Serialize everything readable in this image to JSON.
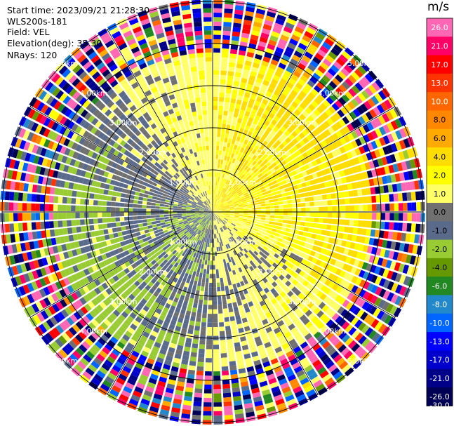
{
  "header": {
    "start_time": "Start time: 2023/09/21 21:28:30",
    "instrument": "WLS200s-181",
    "field": "Field: VEL",
    "elevation": "Elevation(deg): 35.30",
    "nrays": "NRays: 120"
  },
  "chart_data": {
    "type": "heatmap",
    "projection": "polar (PPI scan)",
    "field": "VEL",
    "n_rays": 120,
    "elevation_deg": 35.3,
    "range_rings_km": [
      1.0,
      2.0,
      3.0,
      4.0,
      5.0
    ],
    "ring_label_text": [
      "1.00km",
      "2.00km",
      "3.00km",
      "4.00km",
      "5.00km"
    ],
    "spokes_deg": [
      0,
      30,
      60,
      90,
      120,
      150,
      180,
      210,
      240,
      270,
      300,
      330
    ],
    "colorbar": {
      "unit": "m/s",
      "range": [
        -30,
        30
      ],
      "boundaries": [
        "26.0",
        "21.0",
        "17.0",
        "13.0",
        "10.0",
        "8.0",
        "6.0",
        "4.0",
        "2.0",
        "1.0",
        "0.0",
        "-1.0",
        "-2.0",
        "-4.0",
        "-6.0",
        "-8.0",
        "-10.0",
        "-13.0",
        "-17.0",
        "-21.0",
        "-26.0",
        "-30.0"
      ],
      "colors": [
        "#ff66b3",
        "#ff0066",
        "#ff0000",
        "#ff3300",
        "#ff6600",
        "#ff8800",
        "#ffaa00",
        "#ffdd00",
        "#ffff00",
        "#ffff66",
        "#707070",
        "#5a6a8a",
        "#99cc33",
        "#669900",
        "#228822",
        "#2288cc",
        "#0066ff",
        "#0000ff",
        "#0000cc",
        "#000088",
        "#000055"
      ]
    },
    "pattern": {
      "near_field": "positive velocities (yellow/orange) to the north-east and east, negative velocities (green) to the west and south-west, grey near-zero patches along the north-west/south-east axis",
      "far_field": "noisy multicolored returns beyond ~3.8 km"
    }
  }
}
